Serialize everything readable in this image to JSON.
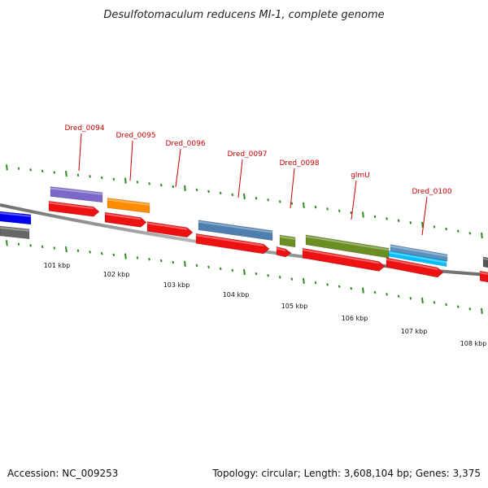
{
  "title": "Desulfotomaculum reducens MI-1, complete genome",
  "footer": {
    "accession": "Accession: NC_009253",
    "summary": "Topology: circular; Length: 3,608,104 bp; Genes: 3,375"
  },
  "colors": {
    "label": "#cc0000",
    "tick": "#2e8b20",
    "backbone": "#8c8c8c",
    "cds_red": "#ee1111"
  },
  "gene_labels": [
    {
      "text": "Dred_0094"
    },
    {
      "text": "Dred_0095"
    },
    {
      "text": "Dred_0096"
    },
    {
      "text": "Dred_0097"
    },
    {
      "text": "Dred_0098"
    },
    {
      "text": "glmU"
    },
    {
      "text": "Dred_0100"
    }
  ],
  "scale_labels": [
    "101 kbp",
    "102 kbp",
    "103 kbp",
    "104 kbp",
    "105 kbp",
    "106 kbp",
    "107 kbp",
    "108 kbp"
  ],
  "feature_colors": [
    "#0000ee",
    "#666666",
    "#7b68c8",
    "#ff8c00",
    "#4f7fae",
    "#6b8e23",
    "#5b8fbe",
    "#00bfff",
    "#555555",
    "#ee1111"
  ]
}
